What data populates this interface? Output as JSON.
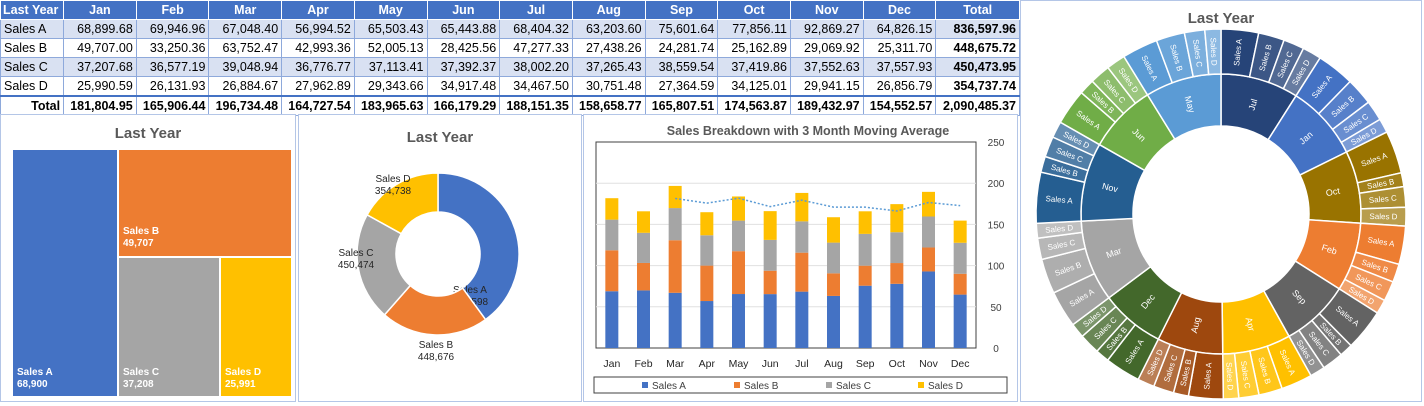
{
  "table": {
    "headers": [
      "Last Year",
      "Jan",
      "Feb",
      "Mar",
      "Apr",
      "May",
      "Jun",
      "Jul",
      "Aug",
      "Sep",
      "Oct",
      "Nov",
      "Dec",
      "Total"
    ],
    "rows": [
      {
        "label": "Sales A",
        "cells": [
          "68,899.68",
          "69,946.96",
          "67,048.40",
          "56,994.52",
          "65,503.43",
          "65,443.88",
          "68,404.32",
          "63,203.60",
          "75,601.64",
          "77,856.11",
          "92,869.27",
          "64,826.15"
        ],
        "total": "836,597.96"
      },
      {
        "label": "Sales B",
        "cells": [
          "49,707.00",
          "33,250.36",
          "63,752.47",
          "42,993.36",
          "52,005.13",
          "28,425.56",
          "47,277.33",
          "27,438.26",
          "24,281.74",
          "25,162.89",
          "29,069.92",
          "25,311.70"
        ],
        "total": "448,675.72"
      },
      {
        "label": "Sales C",
        "cells": [
          "37,207.68",
          "36,577.19",
          "39,048.94",
          "36,776.77",
          "37,113.41",
          "37,392.37",
          "38,002.20",
          "37,265.43",
          "38,559.54",
          "37,419.86",
          "37,552.63",
          "37,557.93"
        ],
        "total": "450,473.95"
      },
      {
        "label": "Sales D",
        "cells": [
          "25,990.59",
          "26,131.93",
          "26,884.67",
          "27,962.89",
          "29,343.66",
          "34,917.48",
          "34,467.50",
          "30,751.48",
          "27,364.59",
          "34,125.01",
          "29,941.15",
          "26,856.79"
        ],
        "total": "354,737.74"
      }
    ],
    "total_row": {
      "label": "Total",
      "cells": [
        "181,804.95",
        "165,906.44",
        "196,734.48",
        "164,727.54",
        "183,965.63",
        "166,179.29",
        "188,151.35",
        "158,658.77",
        "165,807.51",
        "174,563.87",
        "189,432.97",
        "154,552.57"
      ],
      "total": "2,090,485.37"
    }
  },
  "treemap": {
    "title": "Last Year",
    "tiles": [
      {
        "name": "Sales A",
        "value": "68,900",
        "color": "#4472c4"
      },
      {
        "name": "Sales B",
        "value": "49,707",
        "color": "#ed7d31"
      },
      {
        "name": "Sales C",
        "value": "37,208",
        "color": "#a5a5a5"
      },
      {
        "name": "Sales D",
        "value": "25,991",
        "color": "#ffc000"
      }
    ]
  },
  "colors": {
    "a": "#4472c4",
    "b": "#ed7d31",
    "c": "#a5a5a5",
    "d": "#ffc000",
    "trend": "#5b9bd5",
    "header": "#4472c4"
  },
  "chart_data": [
    {
      "type": "pie",
      "title": "Last Year",
      "labels": [
        "Sales A",
        "Sales B",
        "Sales C",
        "Sales D"
      ],
      "values": [
        836598,
        448676,
        450474,
        354738
      ],
      "display": [
        "836,598",
        "448,676",
        "450,474",
        "354,738"
      ],
      "colors": [
        "#4472c4",
        "#ed7d31",
        "#a5a5a5",
        "#ffc000"
      ]
    },
    {
      "type": "bar",
      "title": "Sales Breakdown with 3 Month Moving Average",
      "categories": [
        "Jan",
        "Feb",
        "Mar",
        "Apr",
        "May",
        "Jun",
        "Jul",
        "Aug",
        "Sep",
        "Oct",
        "Nov",
        "Dec"
      ],
      "series": [
        {
          "name": "Sales A",
          "color": "#4472c4",
          "values": [
            68.9,
            69.9,
            67.0,
            57.0,
            65.5,
            65.4,
            68.4,
            63.2,
            75.6,
            77.9,
            92.9,
            64.8
          ]
        },
        {
          "name": "Sales B",
          "color": "#ed7d31",
          "values": [
            49.7,
            33.3,
            63.8,
            43.0,
            52.0,
            28.4,
            47.3,
            27.4,
            24.3,
            25.2,
            29.1,
            25.3
          ]
        },
        {
          "name": "Sales C",
          "color": "#a5a5a5",
          "values": [
            37.2,
            36.6,
            39.0,
            36.8,
            37.1,
            37.4,
            38.0,
            37.3,
            38.6,
            37.4,
            37.6,
            37.6
          ]
        },
        {
          "name": "Sales D",
          "color": "#ffc000",
          "values": [
            26.0,
            26.1,
            26.9,
            28.0,
            29.3,
            34.9,
            34.5,
            30.8,
            27.4,
            34.1,
            29.9,
            26.9
          ]
        }
      ],
      "moving_average": [
        null,
        null,
        181.5,
        175.8,
        181.8,
        171.6,
        179.4,
        171.0,
        170.9,
        166.3,
        176.6,
        172.8
      ],
      "yticks": [
        "0",
        "50",
        "100",
        "150",
        "200",
        "250"
      ],
      "ylim": [
        0,
        250
      ],
      "stacked": true,
      "legend": "bottom"
    },
    {
      "type": "sunburst",
      "title": "Last Year",
      "months": [
        "Jan",
        "Feb",
        "Mar",
        "Apr",
        "May",
        "Jun",
        "Jul",
        "Aug",
        "Sep",
        "Oct",
        "Nov",
        "Dec"
      ],
      "series": [
        "Sales A",
        "Sales B",
        "Sales C",
        "Sales D"
      ],
      "values": [
        [
          68.9,
          49.7,
          37.2,
          26.0
        ],
        [
          69.9,
          33.3,
          36.6,
          26.1
        ],
        [
          67.0,
          63.8,
          39.0,
          26.9
        ],
        [
          57.0,
          43.0,
          36.8,
          28.0
        ],
        [
          65.5,
          52.0,
          37.1,
          29.3
        ],
        [
          65.4,
          28.4,
          37.4,
          34.9
        ],
        [
          68.4,
          47.3,
          38.0,
          34.5
        ],
        [
          63.2,
          27.4,
          37.3,
          30.8
        ],
        [
          75.6,
          24.3,
          38.6,
          27.4
        ],
        [
          77.9,
          25.2,
          37.4,
          34.1
        ],
        [
          92.9,
          29.1,
          37.6,
          29.9
        ],
        [
          64.8,
          25.3,
          37.6,
          26.9
        ]
      ],
      "order": [
        "Jul",
        "Jan",
        "Oct",
        "Feb",
        "Sep",
        "Apr",
        "Aug",
        "Dec",
        "Mar",
        "Nov",
        "Jun",
        "May"
      ],
      "colors": {
        "Jan": "#4472c4",
        "Feb": "#ed7d31",
        "Mar": "#a5a5a5",
        "Apr": "#ffc000",
        "May": "#5b9bd5",
        "Jun": "#70ad47",
        "Jul": "#264478",
        "Aug": "#9e480e",
        "Sep": "#636363",
        "Oct": "#997300",
        "Nov": "#255e91",
        "Dec": "#43682b"
      }
    }
  ]
}
